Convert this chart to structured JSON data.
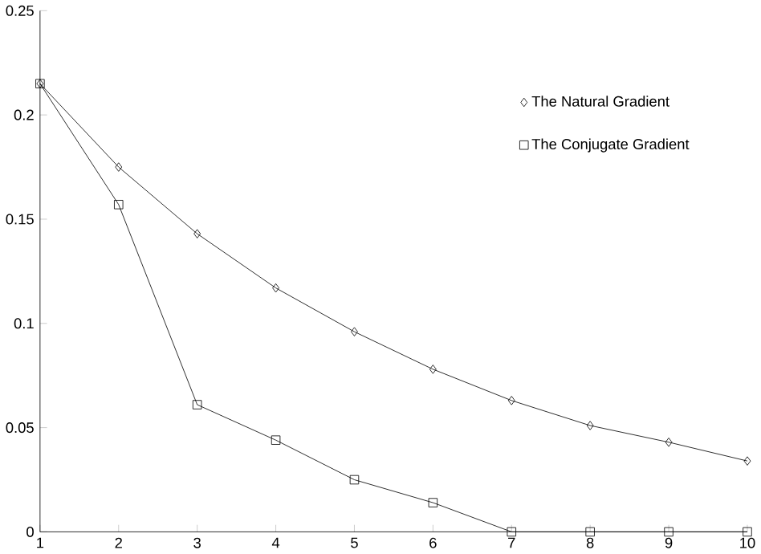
{
  "chart_data": {
    "type": "line",
    "x": [
      1,
      2,
      3,
      4,
      5,
      6,
      7,
      8,
      9,
      10
    ],
    "series": [
      {
        "name": "The Natural Gradient",
        "color": "#000000",
        "marker": "diamond",
        "values": [
          0.215,
          0.175,
          0.143,
          0.117,
          0.096,
          0.078,
          0.063,
          0.051,
          0.043,
          0.034
        ]
      },
      {
        "name": "The Conjugate Gradient",
        "color": "#000000",
        "marker": "square",
        "values": [
          0.215,
          0.157,
          0.061,
          0.044,
          0.025,
          0.014,
          0,
          0,
          0,
          0
        ]
      }
    ],
    "xlim": [
      1,
      10
    ],
    "xticks": [
      1,
      2,
      3,
      4,
      5,
      6,
      7,
      8,
      9,
      10
    ],
    "ylim": [
      0,
      0.25
    ],
    "yticks": [
      0,
      0.05,
      0.1,
      0.15,
      0.2,
      0.25
    ],
    "legend": "top right",
    "line_style": "solid",
    "grid": false
  }
}
